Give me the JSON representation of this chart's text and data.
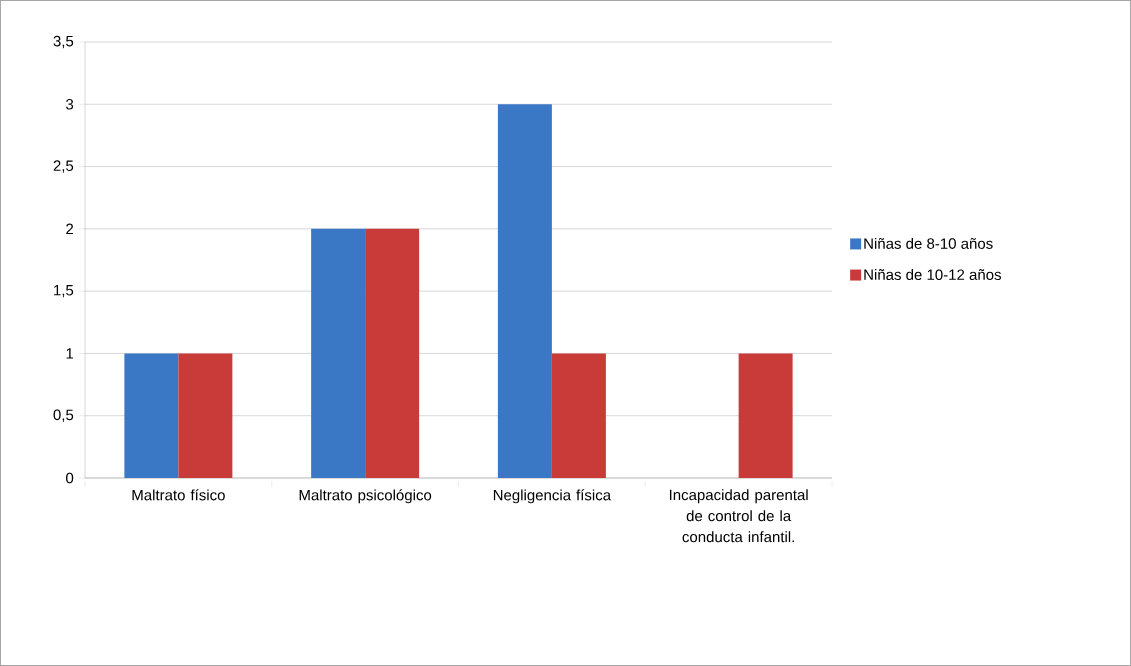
{
  "chart_data": {
    "type": "bar",
    "categories": [
      "Maltrato físico",
      "Maltrato psicológico",
      "Negligencia física",
      "Incapacidad parental de control de la conducta infantil."
    ],
    "series": [
      {
        "name": "Niñas de 8-10 años",
        "color": "#3a78c6",
        "values": [
          1,
          2,
          3,
          null
        ]
      },
      {
        "name": "Niñas de 10-12 años",
        "color": "#c93b38",
        "values": [
          1,
          2,
          1,
          1
        ]
      }
    ],
    "ylim": [
      0,
      3.5
    ],
    "yticks": [
      0,
      {
        "value": 0.5,
        "label": "0,5"
      },
      1,
      {
        "value": 1.5,
        "label": "1,5"
      },
      2,
      {
        "value": 2.5,
        "label": "2,5"
      },
      3,
      {
        "value": 3.5,
        "label": "3,5"
      }
    ],
    "grid": "y",
    "legend": "right"
  }
}
